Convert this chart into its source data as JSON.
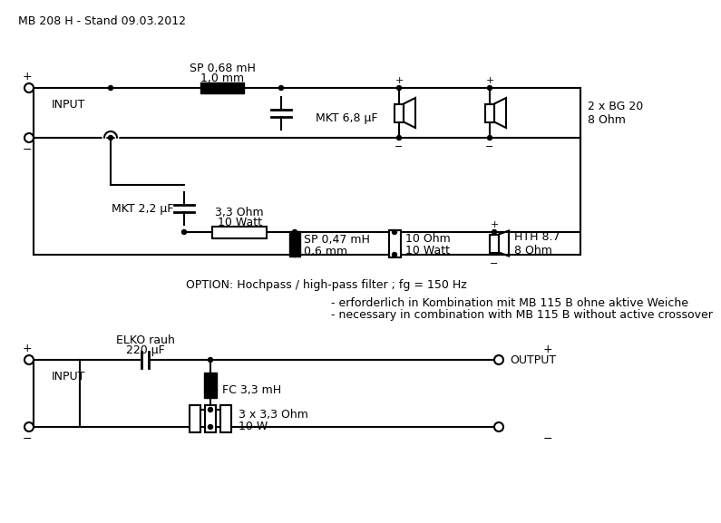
{
  "title": "MB 208 H - Stand 09.03.2012",
  "bg_color": "#ffffff",
  "line_color": "#000000",
  "lw": 1.5,
  "font_size": 8.5,
  "option_text": "OPTION: Hochpass / high-pass filter ; fg = 150 Hz",
  "option_line1": "- erforderlich in Kombination mit MB 115 B ohne aktive Weiche",
  "option_line2": "- necessary in combination with MB 115 B without active crossover",
  "ind1_label1": "SP 0,68 mH",
  "ind1_label2": "1,0 mm",
  "cap1_label": "MKT 6,8 μF",
  "cap2_label": "MKT 2,2 μF",
  "ind2_label1": "SP 0,47 mH",
  "ind2_label2": "0,6 mm",
  "res1_label1": "3,3 Ohm",
  "res1_label2": "10 Watt",
  "res2_label1": "10 Ohm",
  "res2_label2": "10 Watt",
  "spk1_label1": "2 x BG 20",
  "spk1_label2": "8 Ohm",
  "spk2_label1": "HTH 8.7",
  "spk2_label2": "8 Ohm",
  "elko_label1": "ELKO rauh",
  "elko_label2": "220 μF",
  "ind3_label": "FC 3,3 mH",
  "res3_label1": "3 x 3,3 Ohm",
  "res3_label2": "10 W",
  "input_label": "INPUT",
  "output_label": "OUTPUT"
}
